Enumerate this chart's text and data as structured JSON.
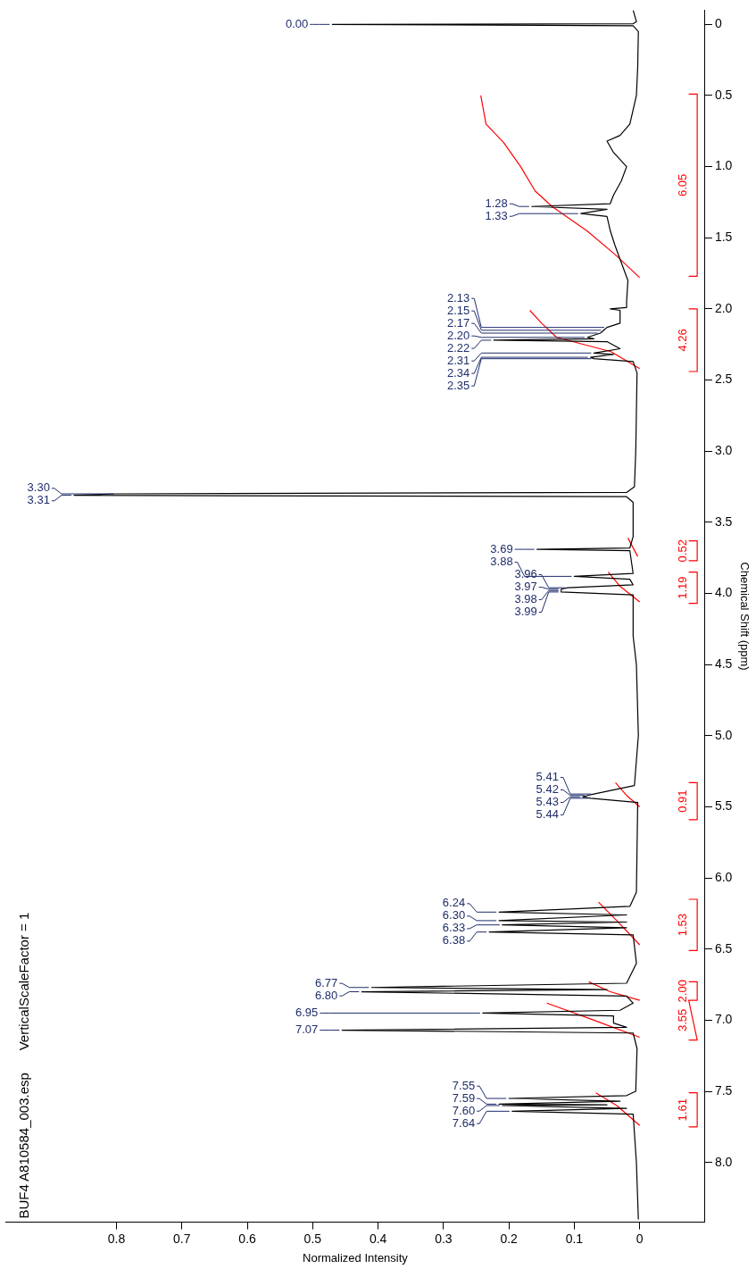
{
  "chart_data": {
    "type": "line",
    "orientation": "horizontal",
    "xlabel": "Normalized Intensity",
    "ylabel": "Chemical Shift (ppm)",
    "xlim": [
      0.97,
      -0.1
    ],
    "ylim": [
      8.42,
      -0.1
    ],
    "xticks": [
      0,
      0.1,
      0.2,
      0.3,
      0.4,
      0.5,
      0.6,
      0.7,
      0.8
    ],
    "yticks": [
      0,
      0.5,
      {
        "value": 1,
        "label": "1.0"
      },
      1.5,
      {
        "value": 2,
        "label": "2.0"
      },
      2.5,
      {
        "value": 3,
        "label": "3.0"
      },
      3.5,
      {
        "value": 4,
        "label": "4.0"
      },
      4.5,
      {
        "value": 5,
        "label": "5.0"
      },
      5.5,
      {
        "value": 6,
        "label": "6.0"
      },
      6.5,
      {
        "value": 7,
        "label": "7.0"
      },
      7.5,
      {
        "value": 8,
        "label": "8.0"
      }
    ],
    "grid": false,
    "legend": false,
    "marker": "none",
    "series": [
      {
        "color": "#000000",
        "x": [
          -0.1,
          -0.02,
          -0.005,
          0,
          0.01,
          0.05,
          0.3,
          0.5,
          0.6,
          0.7,
          0.78,
          0.82,
          0.9,
          1.0,
          1.1,
          1.2,
          1.26,
          1.28,
          1.3,
          1.33,
          1.35,
          1.45,
          1.55,
          1.65,
          1.8,
          1.95,
          1.99,
          2.0,
          2.01,
          2.1,
          2.13,
          2.15,
          2.17,
          2.2,
          2.21,
          2.22,
          2.23,
          2.28,
          2.31,
          2.32,
          2.34,
          2.35,
          2.37,
          2.45,
          3.0,
          3.25,
          3.29,
          3.3,
          3.31,
          3.32,
          3.36,
          3.6,
          3.68,
          3.69,
          3.7,
          3.86,
          3.88,
          3.9,
          3.94,
          3.96,
          3.97,
          3.98,
          3.99,
          4.01,
          4.3,
          4.5,
          5.0,
          5.35,
          5.41,
          5.42,
          5.43,
          5.44,
          5.47,
          6.1,
          6.2,
          6.24,
          6.26,
          6.3,
          6.31,
          6.33,
          6.35,
          6.38,
          6.4,
          6.6,
          6.74,
          6.77,
          6.785,
          6.8,
          6.83,
          6.88,
          6.93,
          6.95,
          6.97,
          7.02,
          7.05,
          7.07,
          7.09,
          7.2,
          7.5,
          7.53,
          7.55,
          7.57,
          7.59,
          7.595,
          7.6,
          7.62,
          7.64,
          7.66,
          8.0,
          8.4
        ],
        "values": [
          0.01,
          0.005,
          0.01,
          0.47,
          0.01,
          0.002,
          0.003,
          0.005,
          0.01,
          0.015,
          0.03,
          0.05,
          0.04,
          0.02,
          0.028,
          0.04,
          0.045,
          0.165,
          0.05,
          0.09,
          0.05,
          0.045,
          0.038,
          0.03,
          0.018,
          0.02,
          0.02,
          0.045,
          0.03,
          0.03,
          0.05,
          0.055,
          0.06,
          0.08,
          0.07,
          0.223,
          0.05,
          0.03,
          0.07,
          0.04,
          0.075,
          0.07,
          0.01,
          0.004,
          0.006,
          0.008,
          0.02,
          0.8,
          0.865,
          0.02,
          0.01,
          0.01,
          0.015,
          0.157,
          0.015,
          0.01,
          0.1,
          0.015,
          0.01,
          0.11,
          0.12,
          0.12,
          0.12,
          0.01,
          0.01,
          0.005,
          0.002,
          0.008,
          0.07,
          0.08,
          0.087,
          0.075,
          0.003,
          0.005,
          0.015,
          0.215,
          0.02,
          0.215,
          0.02,
          0.21,
          0.02,
          0.23,
          0.01,
          0.005,
          0.02,
          0.41,
          0.05,
          0.425,
          0.02,
          0.01,
          0.03,
          0.24,
          0.04,
          0.04,
          0.02,
          0.455,
          0.01,
          0.004,
          0.006,
          0.02,
          0.2,
          0.03,
          0.215,
          0.05,
          0.21,
          0.02,
          0.195,
          0.01,
          0.005,
          0.002
        ]
      },
      {
        "color": "#ff0000",
        "x": [
          0.5,
          0.7,
          0.83,
          1.0,
          1.17,
          1.28,
          1.45,
          1.62,
          1.78,
          1.9,
          2.01,
          2.1,
          2.2,
          2.3,
          2.42,
          3.5,
          3.61,
          3.74,
          3.8,
          3.85,
          3.95,
          4.06,
          5.2,
          5.33,
          5.42,
          5.5,
          6.0,
          6.17,
          6.3,
          6.47,
          6.6,
          6.73,
          6.8,
          6.86,
          6.87,
          6.88,
          7.0,
          7.12,
          7.3,
          7.51,
          7.6,
          7.74
        ],
        "values": [
          0.243,
          0.235,
          0.208,
          0.182,
          0.16,
          0.134,
          0.081,
          0.037,
          0,
          null,
          0.168,
          0.15,
          0.127,
          0.044,
          0,
          null,
          0.018,
          0.003,
          null,
          0.048,
          0.03,
          0,
          null,
          0.037,
          0.02,
          0,
          null,
          0.063,
          0.035,
          0,
          null,
          0.078,
          0.045,
          0,
          null,
          0.142,
          0.07,
          0,
          null,
          0.067,
          0.035,
          0
        ]
      },
      {
        "color": "#ff0000",
        "x": [
          0.49,
          0.49,
          1.77,
          1.77,
          1.8,
          2.0,
          2.0,
          2.44,
          2.44,
          2.5,
          3.63,
          3.63,
          3.77,
          3.77,
          3.8,
          3.85,
          3.85,
          4.07,
          4.07,
          4.1,
          5.33,
          5.33,
          5.59,
          5.59,
          5.7,
          6.15,
          6.15,
          6.51,
          6.51,
          6.6,
          6.73,
          6.73,
          6.86,
          6.86,
          7.14,
          7.14,
          7.3,
          7.51,
          7.51,
          7.75,
          7.75
        ],
        "values": [
          -0.075,
          -0.088,
          -0.088,
          -0.075,
          null,
          -0.075,
          -0.088,
          -0.088,
          -0.075,
          null,
          -0.075,
          -0.088,
          -0.088,
          -0.075,
          null,
          -0.075,
          -0.088,
          -0.088,
          -0.075,
          null,
          -0.075,
          -0.088,
          -0.088,
          -0.075,
          null,
          -0.075,
          -0.088,
          -0.088,
          -0.075,
          null,
          -0.075,
          -0.088,
          -0.088,
          -0.075,
          -0.088,
          -0.075,
          null,
          -0.075,
          -0.088,
          -0.088,
          -0.075
        ]
      }
    ],
    "annotations": [
      "BUF4 A810584_003.esp",
      "VerticalScaleFactor = 1",
      {
        "text": "6.05",
        "y": 1.13,
        "x": -0.088
      },
      {
        "text": "4.26",
        "y": 2.22,
        "x": -0.088
      },
      {
        "text": "0.52",
        "y": 3.7,
        "x": -0.088
      },
      {
        "text": "1.19",
        "y": 3.96,
        "x": -0.088
      },
      {
        "text": "0.91",
        "y": 5.46,
        "x": -0.088
      },
      {
        "text": "1.53",
        "y": 6.33,
        "x": -0.088
      },
      {
        "text": "2.00",
        "y": 6.795,
        "x": -0.088
      },
      {
        "text": "3.55",
        "y": 7.0,
        "x": -0.088
      },
      {
        "text": "1.61",
        "y": 7.63,
        "x": -0.088
      },
      {
        "text": "0.00",
        "y": 0,
        "x": 0.47
      },
      {
        "text": "1.28",
        "y": 1.28,
        "x": 0.165
      },
      {
        "text": "1.33",
        "y": 1.33,
        "x": 0.09
      },
      {
        "text": "2.13",
        "y": 2.13,
        "x": 0.05
      },
      {
        "text": "2.15",
        "y": 2.15,
        "x": 0.055
      },
      {
        "text": "2.17",
        "y": 2.17,
        "x": 0.06
      },
      {
        "text": "2.20",
        "y": 2.2,
        "x": 0.08
      },
      {
        "text": "2.22",
        "y": 2.22,
        "x": 0.223
      },
      {
        "text": "2.31",
        "y": 2.31,
        "x": 0.07
      },
      {
        "text": "2.34",
        "y": 2.34,
        "x": 0.075
      },
      {
        "text": "2.35",
        "y": 2.35,
        "x": 0.07
      },
      {
        "text": "3.30",
        "y": 3.3,
        "x": 0.8
      },
      {
        "text": "3.31",
        "y": 3.31,
        "x": 0.865
      },
      {
        "text": "3.69",
        "y": 3.69,
        "x": 0.157
      },
      {
        "text": "3.88",
        "y": 3.88,
        "x": 0.1
      },
      {
        "text": "3.96",
        "y": 3.96,
        "x": 0.11
      },
      {
        "text": "3.97",
        "y": 3.97,
        "x": 0.12
      },
      {
        "text": "3.98",
        "y": 3.98,
        "x": 0.12
      },
      {
        "text": "3.99",
        "y": 3.99,
        "x": 0.12
      },
      {
        "text": "5.41",
        "y": 5.41,
        "x": 0.07
      },
      {
        "text": "5.42",
        "y": 5.42,
        "x": 0.08
      },
      {
        "text": "5.43",
        "y": 5.43,
        "x": 0.087
      },
      {
        "text": "5.44",
        "y": 5.44,
        "x": 0.075
      },
      {
        "text": "6.24",
        "y": 6.24,
        "x": 0.215
      },
      {
        "text": "6.30",
        "y": 6.3,
        "x": 0.215
      },
      {
        "text": "6.33",
        "y": 6.33,
        "x": 0.21
      },
      {
        "text": "6.38",
        "y": 6.38,
        "x": 0.23
      },
      {
        "text": "6.77",
        "y": 6.77,
        "x": 0.41
      },
      {
        "text": "6.80",
        "y": 6.8,
        "x": 0.425
      },
      {
        "text": "6.95",
        "y": 6.95,
        "x": 0.24
      },
      {
        "text": "7.07",
        "y": 7.07,
        "x": 0.455
      },
      {
        "text": "7.55",
        "y": 7.55,
        "x": 0.2
      },
      {
        "text": "7.59",
        "y": 7.59,
        "x": 0.215
      },
      {
        "text": "7.60",
        "y": 7.6,
        "x": 0.21
      },
      {
        "text": "7.64",
        "y": 7.64,
        "x": 0.195
      }
    ]
  }
}
